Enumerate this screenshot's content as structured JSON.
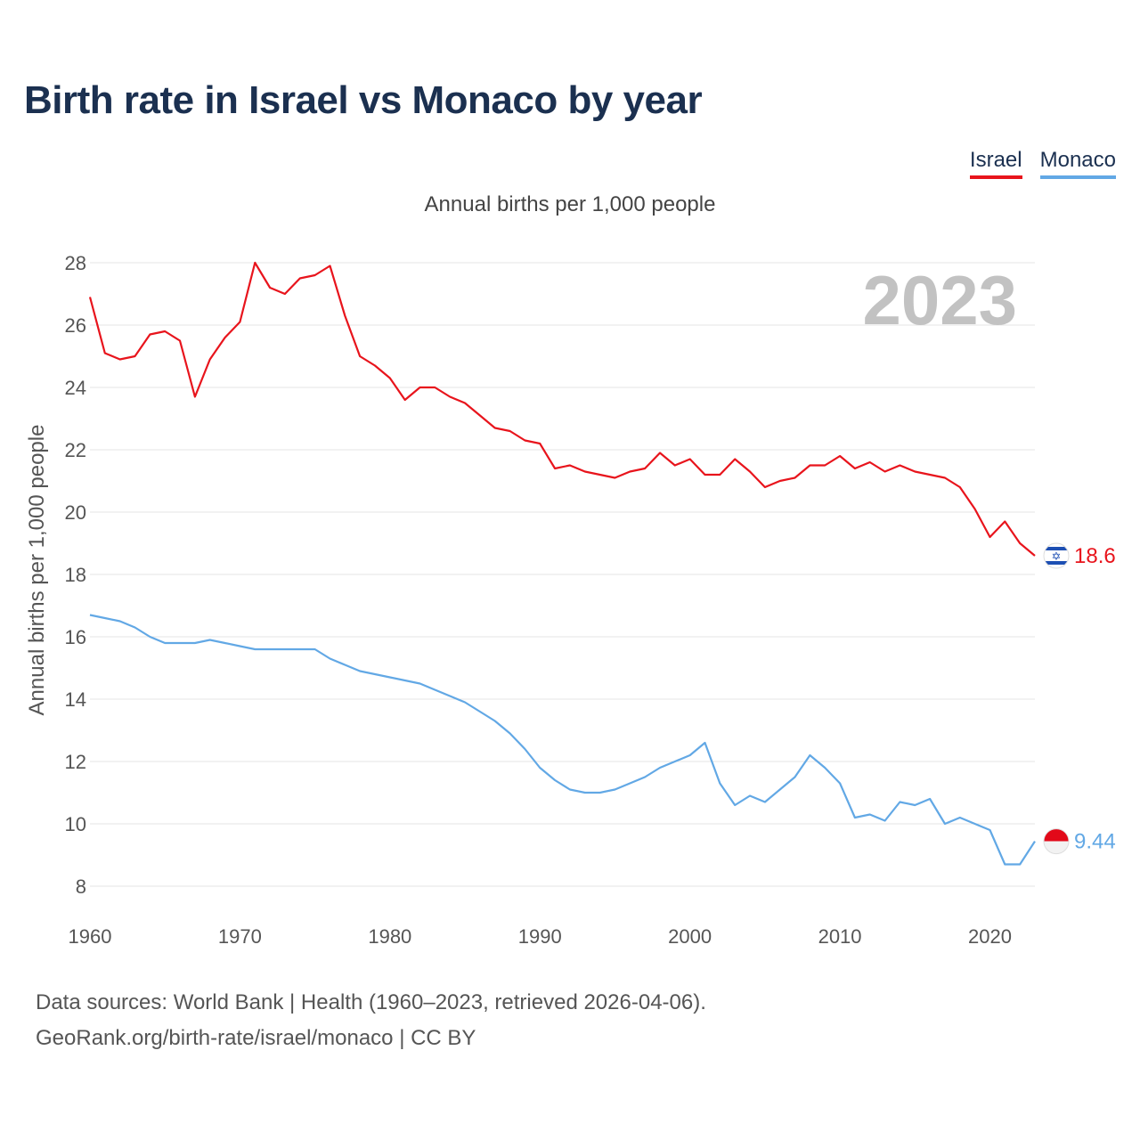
{
  "chart_data": {
    "type": "line",
    "title": "Birth rate in Israel vs Monaco by year",
    "subtitle": "Annual births per 1,000 people",
    "ylabel": "Annual births per 1,000 people",
    "xlabel": "",
    "year_badge": "2023",
    "xlim": [
      1960,
      2023
    ],
    "ylim": [
      7,
      29
    ],
    "x_ticks": [
      1960,
      1970,
      1980,
      1990,
      2000,
      2010,
      2020
    ],
    "y_ticks": [
      8,
      10,
      12,
      14,
      16,
      18,
      20,
      22,
      24,
      26,
      28
    ],
    "legend_position": "top-right",
    "x": [
      1960,
      1961,
      1962,
      1963,
      1964,
      1965,
      1966,
      1967,
      1968,
      1969,
      1970,
      1971,
      1972,
      1973,
      1974,
      1975,
      1976,
      1977,
      1978,
      1979,
      1980,
      1981,
      1982,
      1983,
      1984,
      1985,
      1986,
      1987,
      1988,
      1989,
      1990,
      1991,
      1992,
      1993,
      1994,
      1995,
      1996,
      1997,
      1998,
      1999,
      2000,
      2001,
      2002,
      2003,
      2004,
      2005,
      2006,
      2007,
      2008,
      2009,
      2010,
      2011,
      2012,
      2013,
      2014,
      2015,
      2016,
      2017,
      2018,
      2019,
      2020,
      2021,
      2022,
      2023
    ],
    "series": [
      {
        "name": "Israel",
        "color": "#e8141c",
        "end_label": "18.6",
        "values": [
          26.9,
          25.1,
          24.9,
          25.0,
          25.7,
          25.8,
          25.5,
          23.7,
          24.9,
          25.6,
          26.1,
          28.0,
          27.2,
          27.0,
          27.5,
          27.6,
          27.9,
          26.3,
          25.0,
          24.7,
          24.3,
          23.6,
          24.0,
          24.0,
          23.7,
          23.5,
          23.1,
          22.7,
          22.6,
          22.3,
          22.2,
          21.4,
          21.5,
          21.3,
          21.2,
          21.1,
          21.3,
          21.4,
          21.9,
          21.5,
          21.7,
          21.2,
          21.2,
          21.7,
          21.3,
          20.8,
          21.0,
          21.1,
          21.5,
          21.5,
          21.8,
          21.4,
          21.6,
          21.3,
          21.5,
          21.3,
          21.2,
          21.1,
          20.8,
          20.1,
          19.2,
          19.7,
          19.0,
          18.6
        ]
      },
      {
        "name": "Monaco",
        "color": "#62a8e5",
        "end_label": "9.44",
        "values": [
          16.7,
          16.6,
          16.5,
          16.3,
          16.0,
          15.8,
          15.8,
          15.8,
          15.9,
          15.8,
          15.7,
          15.6,
          15.6,
          15.6,
          15.6,
          15.6,
          15.3,
          15.1,
          14.9,
          14.8,
          14.7,
          14.6,
          14.5,
          14.3,
          14.1,
          13.9,
          13.6,
          13.3,
          12.9,
          12.4,
          11.8,
          11.4,
          11.1,
          11.0,
          11.0,
          11.1,
          11.3,
          11.5,
          11.8,
          12.0,
          12.2,
          12.6,
          11.3,
          10.6,
          10.9,
          10.7,
          11.1,
          11.5,
          12.2,
          11.8,
          11.3,
          10.2,
          10.3,
          10.1,
          10.7,
          10.6,
          10.8,
          10.0,
          10.2,
          10.0,
          9.8,
          8.7,
          8.7,
          9.44
        ]
      }
    ],
    "sources": [
      "Data sources: World Bank | Health (1960–2023, retrieved 2026-04-06).",
      "GeoRank.org/birth-rate/israel/monaco | CC BY"
    ]
  },
  "icons": {
    "israel": "israel-flag-icon",
    "monaco": "monaco-flag-icon"
  }
}
